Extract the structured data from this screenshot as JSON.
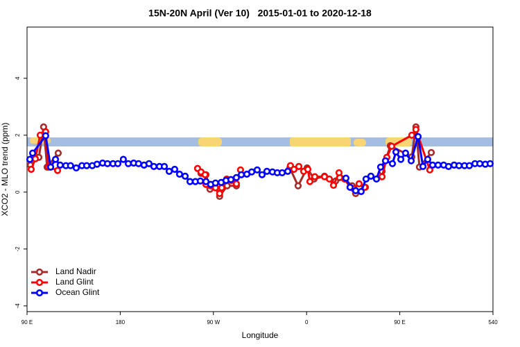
{
  "chart_data": {
    "type": "line",
    "title": "15N-20N April (Ver 10)   2015-01-01 to 2020-12-18",
    "x_label": "Longitude",
    "y_label": "XCO2 - MLO trend (ppm)",
    "xlim": [
      90,
      540
    ],
    "xticks": [
      {
        "value": 90,
        "label": "90 E"
      },
      180,
      {
        "value": 270,
        "label": "90 W"
      },
      {
        "value": 360,
        "label": "0"
      },
      {
        "value": 450,
        "label": "90 E"
      },
      540
    ],
    "ylim": [
      -4.2,
      5.8
    ],
    "yticks": [
      -4,
      -2,
      0,
      2,
      4
    ],
    "legend": "bottom-left",
    "series": [
      {
        "name": "Land Nadir",
        "color": "#a52a2a",
        "x": [
          93.3,
          101.4,
          106.0,
          109.4,
          120.1,
          null,
          258.0,
          262.8,
          266.7,
          271.4,
          276.0,
          283.3,
          292.2,
          null,
          343.8,
          351.8,
          360.5,
          367.2,
          377.3,
          388.0,
          396.7,
          404.0,
          407.4,
          416.8,
          null,
          432.9,
          440.9,
          461.6,
          465.6,
          469.0,
          480.4
        ],
        "values": [
          0.95,
          1.22,
          2.29,
          0.88,
          1.37,
          null,
          0.66,
          0.61,
          0.1,
          0.22,
          -0.15,
          0.22,
          0.22,
          null,
          0.85,
          0.22,
          0.85,
          0.46,
          0.56,
          0.39,
          0.46,
          0.22,
          -0.05,
          0.17,
          null,
          0.73,
          1.63,
          1.24,
          2.29,
          0.88,
          1.39
        ]
      },
      {
        "name": "Land Glint",
        "color": "#ff0000",
        "x": [
          94.0,
          98.0,
          102.7,
          108.0,
          110.8,
          119.5,
          null,
          254.7,
          258.0,
          262.0,
          262.8,
          267.4,
          272.0,
          276.0,
          278.0,
          282.8,
          287.5,
          292.2,
          296.2,
          null,
          344.4,
          347.8,
          352.5,
          357.2,
          361.2,
          363.2,
          367.9,
          377.3,
          382.0,
          386.0,
          391.3,
          396.7,
          402.0,
          405.4,
          410.7,
          416.1,
          null,
          432.9,
          437.5,
          442.2,
          461.6,
          465.6,
          479.0
        ],
        "values": [
          0.8,
          1.17,
          2.0,
          2.12,
          0.88,
          0.76,
          null,
          0.83,
          0.71,
          0.61,
          0.27,
          0.22,
          0.15,
          -0.05,
          0.15,
          0.46,
          0.41,
          0.29,
          0.78,
          null,
          0.93,
          0.8,
          0.9,
          0.73,
          0.8,
          0.37,
          0.54,
          0.54,
          0.46,
          0.24,
          0.68,
          0.46,
          0.17,
          0.12,
          0.29,
          0.17,
          null,
          0.54,
          1.22,
          1.61,
          2.0,
          2.2,
          0.78
        ]
      },
      {
        "name": "Ocean Glint",
        "color": "#0000ff",
        "x": [
          92.7,
          95.4,
          108.0,
          112.8,
          117.5,
          122.0,
          127.5,
          132.0,
          137.5,
          143.0,
          147.6,
          153.0,
          157.6,
          163.0,
          167.7,
          173.0,
          177.7,
          183.0,
          187.8,
          193.0,
          197.7,
          203.0,
          207.8,
          212.5,
          217.9,
          222.6,
          227.3,
          232.6,
          237.3,
          242.7,
          247.4,
          252.6,
          257.4,
          262.8,
          267.4,
          272.0,
          277.5,
          282.2,
          286.9,
          292.2,
          297.0,
          302.3,
          307.0,
          312.3,
          317.0,
          321.7,
          327.0,
          331.7,
          336.4,
          341.8,
          null,
          398.0,
          402.0,
          407.4,
          412.7,
          417.4,
          422.1,
          427.5,
          431.5,
          436.2,
          442.9,
          446.3,
          451.0,
          455.6,
          461.0,
          467.7,
          472.4,
          477.0,
          481.7,
          487.0,
          492.4,
          497.1,
          502.5,
          507.2,
          512.5,
          517.2,
          522.6,
          527.3,
          532.6,
          537.3
        ],
        "values": [
          1.15,
          1.37,
          1.98,
          0.88,
          1.15,
          0.95,
          0.93,
          0.93,
          0.85,
          0.93,
          0.93,
          0.93,
          0.98,
          1.02,
          1.0,
          1.0,
          1.0,
          1.15,
          1.0,
          1.02,
          1.0,
          0.95,
          1.0,
          0.9,
          0.9,
          0.9,
          0.73,
          0.8,
          0.63,
          0.56,
          0.37,
          0.37,
          0.39,
          0.37,
          0.27,
          0.32,
          0.34,
          0.41,
          0.44,
          0.51,
          0.61,
          0.63,
          0.71,
          0.78,
          0.61,
          0.73,
          0.71,
          0.68,
          0.68,
          0.73,
          null,
          0.49,
          0.17,
          0.05,
          0.02,
          0.46,
          0.56,
          0.46,
          0.88,
          1.1,
          1.0,
          1.41,
          1.15,
          1.37,
          1.1,
          1.95,
          0.9,
          1.15,
          0.95,
          0.95,
          0.95,
          0.9,
          0.95,
          0.93,
          0.93,
          0.93,
          1.0,
          1.0,
          0.98,
          1.0
        ]
      }
    ]
  }
}
